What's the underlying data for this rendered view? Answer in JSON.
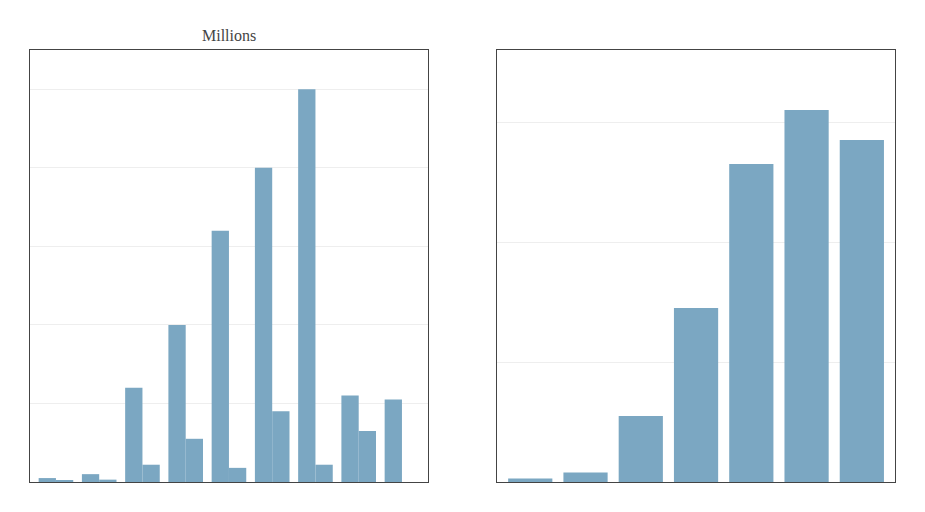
{
  "chart_data": [
    {
      "type": "bar",
      "title": "Millions",
      "categories": [
        null,
        null,
        null,
        null,
        null,
        null,
        null,
        null,
        null
      ],
      "series": [
        {
          "color": "#7ba7c2",
          "values": [
            5,
            10,
            120,
            200,
            320,
            400,
            500,
            110,
            105
          ]
        },
        {
          "color": "#7ba7c2",
          "values": [
            2,
            3,
            22,
            55,
            18,
            90,
            22,
            65,
            0
          ]
        }
      ],
      "ylim": [
        0,
        550
      ],
      "yticks": [
        100,
        200,
        300,
        400,
        500
      ],
      "grid": true,
      "tick_labels": false
    },
    {
      "type": "bar",
      "categories": [
        null,
        null,
        null,
        null,
        null,
        null,
        null
      ],
      "values": [
        3,
        8,
        55,
        145,
        265,
        310,
        285
      ],
      "color": "#7ba7c2",
      "ylim": [
        0,
        360
      ],
      "yticks": [
        100,
        200,
        300
      ],
      "grid": true,
      "tick_labels": false
    }
  ]
}
